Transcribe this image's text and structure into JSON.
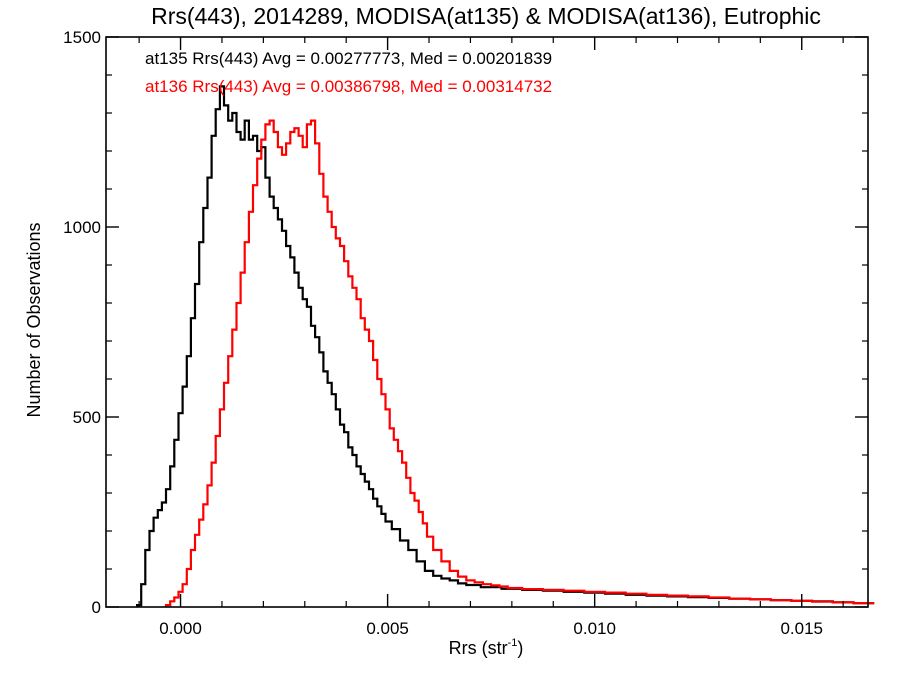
{
  "chart_data": {
    "type": "histogram",
    "title": "Rrs(443), 2014289, MODISA(at135) & MODISA(at136), Eutrophic",
    "xlabel_main": "Rrs (str",
    "xlabel_sup": "-1",
    "xlabel_close": ")",
    "ylabel": "Number of Observations",
    "xlim": [
      -0.0018,
      0.0166
    ],
    "ylim": [
      0,
      1500
    ],
    "xticks": [
      0.0,
      0.005,
      0.01,
      0.015
    ],
    "xtick_labels": [
      "0.000",
      "0.005",
      "0.010",
      "0.015"
    ],
    "yticks": [
      0,
      500,
      1000,
      1500
    ],
    "ytick_labels": [
      "0",
      "500",
      "1000",
      "1500"
    ],
    "grid": false,
    "legend_position": "top-left",
    "series": [
      {
        "name": "at135",
        "legend_text": "at135 Rrs(443) Avg = 0.00277773, Med = 0.00201839",
        "color": "#000000",
        "x": [
          -0.001,
          -0.0009,
          -0.0008,
          -0.0007,
          -0.0006,
          -0.0005,
          -0.0004,
          -0.0003,
          -0.0002,
          -0.0001,
          0.0,
          0.0001,
          0.0002,
          0.0003,
          0.0004,
          0.0005,
          0.0006,
          0.0007,
          0.0008,
          0.0009,
          0.001,
          0.0011,
          0.0012,
          0.0013,
          0.0014,
          0.0015,
          0.0016,
          0.0017,
          0.0018,
          0.0019,
          0.002,
          0.0021,
          0.0022,
          0.0023,
          0.0024,
          0.0025,
          0.0026,
          0.0027,
          0.0028,
          0.0029,
          0.003,
          0.0031,
          0.0032,
          0.0033,
          0.0034,
          0.0035,
          0.0036,
          0.0037,
          0.0038,
          0.0039,
          0.004,
          0.0041,
          0.0042,
          0.0043,
          0.0044,
          0.0045,
          0.0046,
          0.0047,
          0.0048,
          0.0049,
          0.005,
          0.0052,
          0.0054,
          0.0056,
          0.0058,
          0.006,
          0.0062,
          0.0064,
          0.0066,
          0.0068,
          0.007,
          0.0075,
          0.008,
          0.0085,
          0.009,
          0.0095,
          0.01,
          0.0105,
          0.011,
          0.0115,
          0.012,
          0.0125,
          0.013,
          0.0135,
          0.014,
          0.0145,
          0.015,
          0.0155,
          0.016,
          0.0165
        ],
        "y": [
          5,
          60,
          150,
          200,
          235,
          255,
          275,
          310,
          370,
          440,
          510,
          580,
          660,
          760,
          850,
          960,
          1050,
          1130,
          1240,
          1310,
          1370,
          1320,
          1280,
          1300,
          1250,
          1230,
          1280,
          1230,
          1240,
          1200,
          1210,
          1130,
          1080,
          1050,
          1020,
          990,
          950,
          920,
          880,
          840,
          810,
          790,
          740,
          710,
          670,
          620,
          590,
          560,
          520,
          480,
          460,
          420,
          400,
          370,
          350,
          330,
          310,
          285,
          265,
          245,
          225,
          205,
          175,
          150,
          120,
          95,
          82,
          75,
          70,
          62,
          58,
          52,
          48,
          45,
          43,
          40,
          38,
          35,
          32,
          30,
          28,
          26,
          24,
          22,
          20,
          18,
          16,
          15,
          12,
          10
        ]
      },
      {
        "name": "at136",
        "legend_text": "at136 Rrs(443) Avg = 0.00386798, Med = 0.00314732",
        "color": "#ff0000",
        "x": [
          -0.0003,
          -0.0002,
          -0.0001,
          0.0,
          0.0001,
          0.0002,
          0.0003,
          0.0004,
          0.0005,
          0.0006,
          0.0007,
          0.0008,
          0.0009,
          0.001,
          0.0011,
          0.0012,
          0.0013,
          0.0014,
          0.0015,
          0.0016,
          0.0017,
          0.0018,
          0.0019,
          0.002,
          0.0021,
          0.0022,
          0.0023,
          0.0024,
          0.0025,
          0.0026,
          0.0027,
          0.0028,
          0.0029,
          0.003,
          0.0031,
          0.0032,
          0.0033,
          0.0034,
          0.0035,
          0.0036,
          0.0037,
          0.0038,
          0.0039,
          0.004,
          0.0041,
          0.0042,
          0.0043,
          0.0044,
          0.0045,
          0.0046,
          0.0047,
          0.0048,
          0.0049,
          0.005,
          0.0051,
          0.0052,
          0.0053,
          0.0054,
          0.0055,
          0.0056,
          0.0057,
          0.0058,
          0.0059,
          0.006,
          0.0062,
          0.0064,
          0.0066,
          0.0068,
          0.007,
          0.0072,
          0.0074,
          0.0076,
          0.0078,
          0.008,
          0.0085,
          0.009,
          0.0095,
          0.01,
          0.0105,
          0.011,
          0.0115,
          0.012,
          0.0125,
          0.013,
          0.0135,
          0.014,
          0.0145,
          0.015,
          0.0155,
          0.016,
          0.0165
        ],
        "y": [
          5,
          15,
          25,
          40,
          60,
          100,
          150,
          190,
          230,
          270,
          320,
          380,
          450,
          520,
          590,
          660,
          730,
          800,
          880,
          960,
          1040,
          1110,
          1180,
          1230,
          1270,
          1280,
          1250,
          1210,
          1190,
          1220,
          1250,
          1260,
          1240,
          1210,
          1270,
          1280,
          1220,
          1140,
          1080,
          1040,
          1000,
          970,
          950,
          910,
          870,
          840,
          810,
          760,
          730,
          700,
          650,
          600,
          560,
          520,
          470,
          440,
          410,
          380,
          340,
          300,
          280,
          250,
          220,
          185,
          150,
          120,
          95,
          80,
          70,
          65,
          60,
          57,
          54,
          50,
          47,
          45,
          43,
          40,
          38,
          35,
          32,
          30,
          28,
          25,
          22,
          20,
          18,
          16,
          14,
          12,
          10
        ]
      }
    ]
  }
}
